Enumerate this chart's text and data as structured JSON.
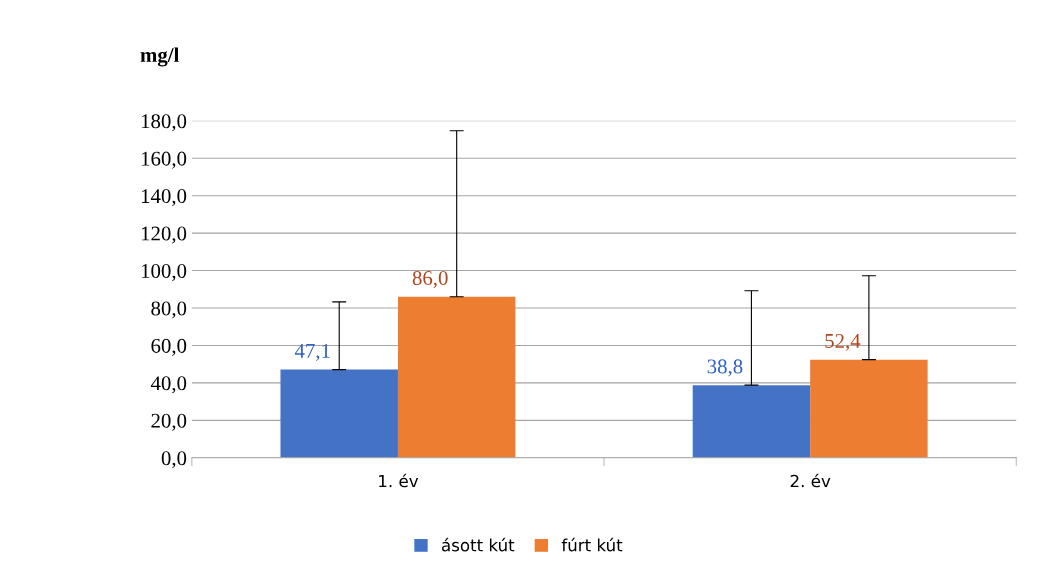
{
  "chart_data": {
    "type": "bar",
    "ylabel": "mg/l",
    "categories": [
      "1. év",
      "2. év"
    ],
    "series": [
      {
        "name": "ásott kút",
        "color": "#4472c4",
        "values": [
          47.1,
          38.8
        ],
        "errors": [
          [
            47.1,
            83.3
          ],
          [
            38.8,
            89.2
          ]
        ],
        "value_labels": [
          "47,1",
          "38,8"
        ]
      },
      {
        "name": "fúrt kút",
        "color": "#ed7d31",
        "values": [
          86.0,
          52.4
        ],
        "errors": [
          [
            86.0,
            174.7
          ],
          [
            52.4,
            97.2
          ]
        ],
        "value_labels": [
          "86,0",
          "52,4"
        ]
      }
    ],
    "ylim": [
      0,
      180
    ],
    "yticks": [
      {
        "value": 0,
        "label": "0,0"
      },
      {
        "value": 20,
        "label": "20,0"
      },
      {
        "value": 40,
        "label": "40,0"
      },
      {
        "value": 60,
        "label": "60,0"
      },
      {
        "value": 80,
        "label": "80,0"
      },
      {
        "value": 100,
        "label": "100,0"
      },
      {
        "value": 120,
        "label": "120,0"
      },
      {
        "value": 140,
        "label": "140,0"
      },
      {
        "value": 160,
        "label": "160,0"
      },
      {
        "value": 180,
        "label": "180,0"
      }
    ],
    "grid": "y",
    "legend": "bottom"
  }
}
